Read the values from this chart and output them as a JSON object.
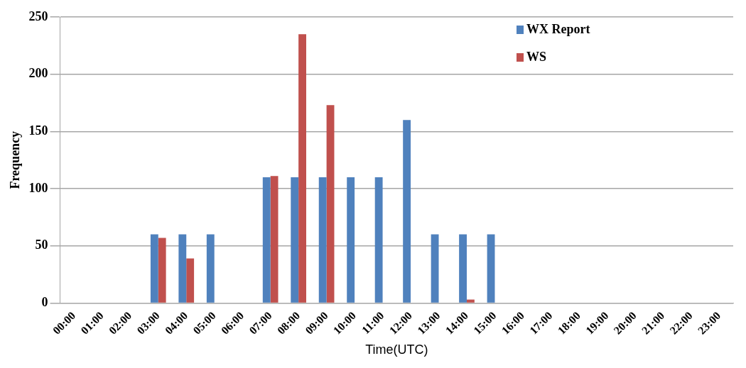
{
  "chart_data": {
    "type": "bar",
    "xlabel": "Time(UTC)",
    "ylabel": "Frequency",
    "categories": [
      "00:00",
      "01:00",
      "02:00",
      "03:00",
      "04:00",
      "05:00",
      "06:00",
      "07:00",
      "08:00",
      "09:00",
      "10:00",
      "11:00",
      "12:00",
      "13:00",
      "14:00",
      "15:00",
      "16:00",
      "17:00",
      "18:00",
      "19:00",
      "20:00",
      "21:00",
      "22:00",
      "23:00"
    ],
    "series": [
      {
        "name": "WX Report",
        "color": "#4f81bd",
        "values": [
          0,
          0,
          0,
          60,
          60,
          60,
          0,
          110,
          110,
          110,
          110,
          110,
          160,
          60,
          60,
          60,
          0,
          0,
          0,
          0,
          0,
          0,
          0,
          0
        ]
      },
      {
        "name": "WS",
        "color": "#c0504d",
        "values": [
          0,
          0,
          0,
          57,
          39,
          0,
          0,
          111,
          235,
          173,
          0,
          0,
          0,
          0,
          3,
          0,
          0,
          0,
          0,
          0,
          0,
          0,
          0,
          0
        ]
      }
    ],
    "ylim": [
      0,
      250
    ],
    "yticks": [
      0,
      50,
      100,
      150,
      200,
      250
    ],
    "grid": "y",
    "legend": "top right"
  }
}
